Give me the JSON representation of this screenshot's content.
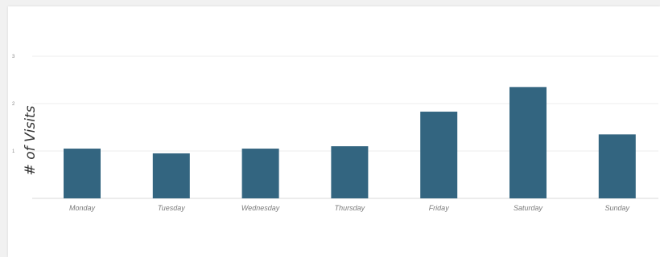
{
  "chart_data": {
    "type": "bar",
    "title": "",
    "xlabel": "",
    "ylabel": "# of Visits",
    "categories": [
      "Monday",
      "Tuesday",
      "Wednesday",
      "Thursday",
      "Friday",
      "Saturday",
      "Sunday"
    ],
    "values": [
      1.05,
      0.95,
      1.05,
      1.1,
      1.83,
      2.35,
      1.35
    ],
    "yticks": [
      "1",
      "2",
      "3"
    ],
    "ylim": [
      0,
      3
    ],
    "grid": true,
    "bar_color": "#336580"
  }
}
